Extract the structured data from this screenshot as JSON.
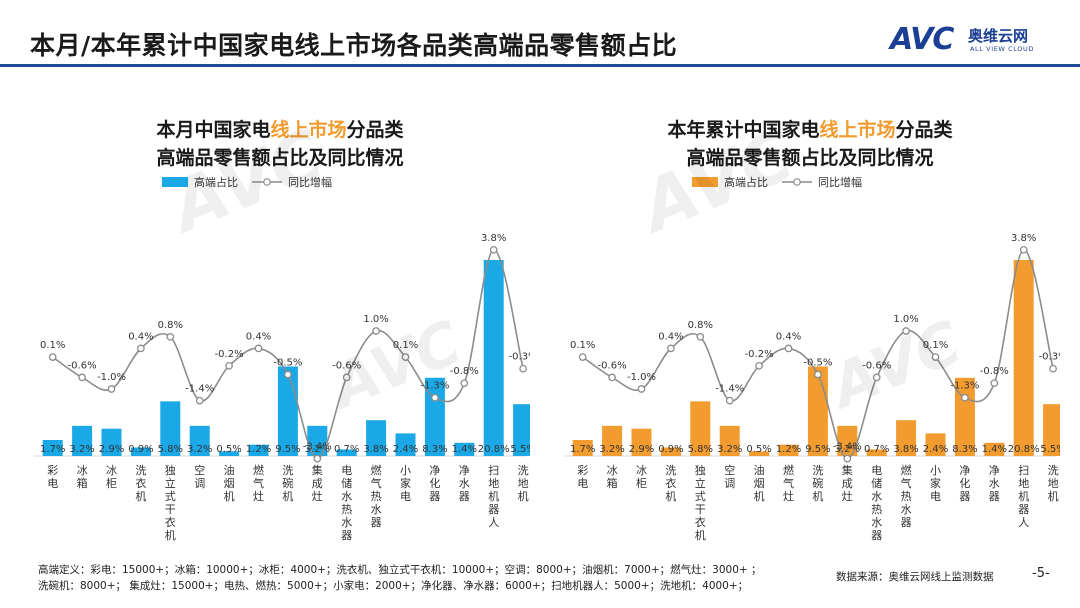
{
  "page": {
    "title": "本月/本年累计中国家电线上市场各品类高端品零售额占比",
    "logo": {
      "mark": "AVC",
      "cn": "奥维云网",
      "en": "ALL VIEW CLOUD"
    },
    "footnote_line1": "高端定义：彩电：15000+；冰箱：10000+；冰柜：4000+；洗衣机、独立式干衣机：10000+；空调：8000+；油烟机：7000+；燃气灶：3000+ ；",
    "footnote_line2": "洗碗机：8000+；   集成灶：15000+；电热、燃热：5000+；小家电：2000+；净化器、净水器：6000+；扫地机器人：5000+；洗地机：4000+；",
    "source": "数据来源：奥维云网线上监测数据",
    "page_number": "-5-"
  },
  "colors": {
    "left_bar": "#1aa9e6",
    "right_bar": "#f29b2e",
    "line": "#8c8c8c",
    "title_highlight": "#f29b2e",
    "brand": "#1a3f95"
  },
  "chart_data": [
    {
      "type": "bar",
      "title_pre": "本月中国家电",
      "title_hl": "线上市场",
      "title_post": "分品类",
      "title_line2": "高端品零售额占比及同比情况",
      "legend": {
        "bar": "高端占比",
        "line": "同比增幅"
      },
      "categories": [
        "彩电",
        "冰箱",
        "冰柜",
        "洗衣机",
        "独立式干衣机",
        "空调",
        "油烟机",
        "燃气灶",
        "洗碗机",
        "集成灶",
        "电储水热水器",
        "燃气热水器",
        "小家电",
        "净化器",
        "净水器",
        "扫地机器人",
        "洗地机"
      ],
      "bar_labels": [
        "1.7%",
        "3.2%",
        "2.9%",
        "0.9%",
        "5.8%",
        "3.2%",
        "0.5%",
        "1.2%",
        "9.5%",
        "3.2%",
        "0.7%",
        "3.8%",
        "2.4%",
        "8.3%",
        "1.4%",
        "20.8%",
        "5.5%"
      ],
      "bar_values": [
        1.7,
        3.2,
        2.9,
        0.9,
        5.8,
        3.2,
        0.5,
        1.2,
        9.5,
        3.2,
        0.7,
        3.8,
        2.4,
        8.3,
        1.4,
        20.8,
        5.5
      ],
      "line_labels": [
        "0.1%",
        "-0.6%",
        "-1.0%",
        "0.4%",
        "0.8%",
        "-1.4%",
        "-0.2%",
        "0.4%",
        "-0.5%",
        "-3.4%",
        "-0.6%",
        "1.0%",
        "0.1%",
        "-1.3%",
        "-0.8%",
        "3.8%",
        "-0.3%"
      ],
      "line_values": [
        0.1,
        -0.6,
        -1.0,
        0.4,
        0.8,
        -1.4,
        -0.2,
        0.4,
        -0.5,
        -3.4,
        -0.6,
        1.0,
        0.1,
        -1.3,
        -0.8,
        3.8,
        -0.3
      ]
    },
    {
      "type": "bar",
      "title_pre": "本年累计中国家电",
      "title_hl": "线上市场",
      "title_post": "分品类",
      "title_line2": "高端品零售额占比及同比情况",
      "legend": {
        "bar": "高端占比",
        "line": "同比增幅"
      },
      "categories": [
        "彩电",
        "冰箱",
        "冰柜",
        "洗衣机",
        "独立式干衣机",
        "空调",
        "油烟机",
        "燃气灶",
        "洗碗机",
        "集成灶",
        "电储水热水器",
        "燃气热水器",
        "小家电",
        "净化器",
        "净水器",
        "扫地机器人",
        "洗地机"
      ],
      "bar_labels": [
        "1.7%",
        "3.2%",
        "2.9%",
        "0.9%",
        "5.8%",
        "3.2%",
        "0.5%",
        "1.2%",
        "9.5%",
        "3.2%",
        "0.7%",
        "3.8%",
        "2.4%",
        "8.3%",
        "1.4%",
        "20.8%",
        "5.5%"
      ],
      "bar_values": [
        1.7,
        3.2,
        2.9,
        0.9,
        5.8,
        3.2,
        0.5,
        1.2,
        9.5,
        3.2,
        0.7,
        3.8,
        2.4,
        8.3,
        1.4,
        20.8,
        5.5
      ],
      "line_labels": [
        "0.1%",
        "-0.6%",
        "-1.0%",
        "0.4%",
        "0.8%",
        "-1.4%",
        "-0.2%",
        "0.4%",
        "-0.5%",
        "-3.4%",
        "-0.6%",
        "1.0%",
        "0.1%",
        "-1.3%",
        "-0.8%",
        "3.8%",
        "-0.3%"
      ],
      "line_values": [
        0.1,
        -0.6,
        -1.0,
        0.4,
        0.8,
        -1.4,
        -0.2,
        0.4,
        -0.5,
        -3.4,
        -0.6,
        1.0,
        0.1,
        -1.3,
        -0.8,
        3.8,
        -0.3
      ]
    }
  ]
}
